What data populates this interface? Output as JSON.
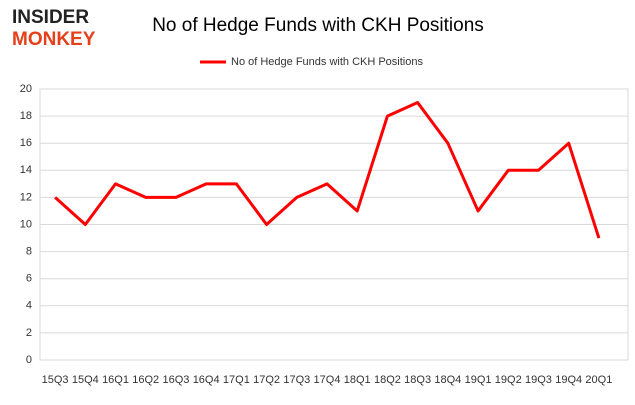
{
  "logo": [
    "INSIDER",
    "MONKEY"
  ],
  "chart_data": {
    "type": "line",
    "title": "No of Hedge Funds with CKH Positions",
    "categories": [
      "15Q3",
      "15Q4",
      "16Q1",
      "16Q2",
      "16Q3",
      "16Q4",
      "17Q1",
      "17Q2",
      "17Q3",
      "17Q4",
      "18Q1",
      "18Q2",
      "18Q3",
      "18Q4",
      "19Q1",
      "19Q2",
      "19Q3",
      "19Q4",
      "20Q1"
    ],
    "series": [
      {
        "name": "No of Hedge Funds with CKH Positions",
        "color": "#ff0000",
        "values": [
          12,
          10,
          13,
          12,
          12,
          13,
          13,
          10,
          12,
          13,
          11,
          18,
          19,
          16,
          11,
          14,
          14,
          16,
          9
        ]
      }
    ],
    "ylim": [
      0,
      20
    ],
    "yticks": [
      0,
      2,
      4,
      6,
      8,
      10,
      12,
      14,
      16,
      18,
      20
    ],
    "grid": true,
    "legend": "top"
  }
}
